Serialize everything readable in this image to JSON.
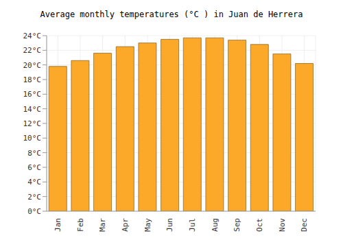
{
  "chart_data": {
    "type": "bar",
    "title": "Average monthly temperatures (°C ) in Juan de Herrera",
    "categories": [
      "Jan",
      "Feb",
      "Mar",
      "Apr",
      "May",
      "Jun",
      "Jul",
      "Aug",
      "Sep",
      "Oct",
      "Nov",
      "Dec"
    ],
    "values": [
      19.8,
      20.6,
      21.6,
      22.5,
      23.0,
      23.5,
      23.7,
      23.7,
      23.4,
      22.8,
      21.5,
      20.2
    ],
    "color": "#fca92a",
    "ylim": [
      0,
      24
    ],
    "yticks": [
      {
        "value": 0,
        "label": "0°C"
      },
      {
        "value": 2,
        "label": "2°C"
      },
      {
        "value": 4,
        "label": "4°C"
      },
      {
        "value": 6,
        "label": "6°C"
      },
      {
        "value": 8,
        "label": "8°C"
      },
      {
        "value": 10,
        "label": "10°C"
      },
      {
        "value": 12,
        "label": "12°C"
      },
      {
        "value": 14,
        "label": "14°C"
      },
      {
        "value": 16,
        "label": "16°C"
      },
      {
        "value": 18,
        "label": "18°C"
      },
      {
        "value": 20,
        "label": "20°C"
      },
      {
        "value": 22,
        "label": "22°C"
      },
      {
        "value": 24,
        "label": "24°C"
      }
    ],
    "grid": true
  }
}
